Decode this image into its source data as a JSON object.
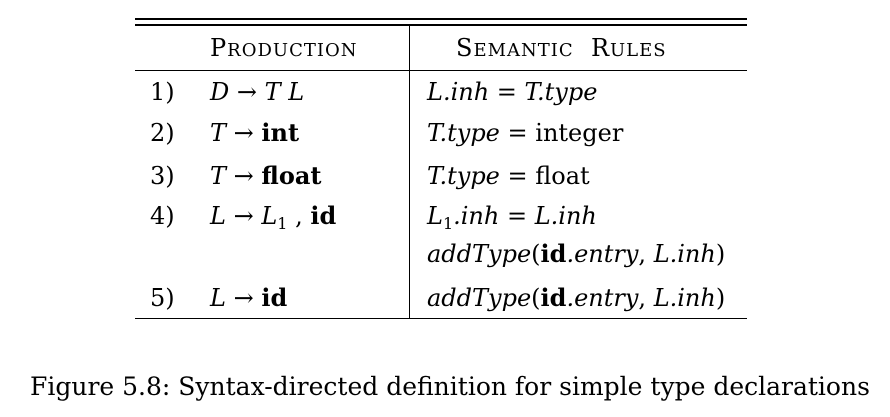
{
  "table": {
    "headers": {
      "production_initial": "P",
      "production_rest": "roduction",
      "semantic_initial_1": "S",
      "semantic_rest_1": "emantic",
      "semantic_initial_2": "R",
      "semantic_rest_2": "ules"
    },
    "rows": [
      {
        "num": "1)",
        "prod": {
          "lhs": "D",
          "arrow": "→",
          "rhs1": "T",
          "rhs2": "L"
        },
        "rule": {
          "a": "L.inh",
          "eq": " = ",
          "b": "T.type"
        }
      },
      {
        "num": "2)",
        "prod": {
          "lhs": "T",
          "arrow": "→",
          "rhs": "int"
        },
        "rule": {
          "a": "T.type",
          "eq": " = ",
          "b": "integer"
        }
      },
      {
        "num": "3)",
        "prod": {
          "lhs": "T",
          "arrow": "→",
          "rhs": "float"
        },
        "rule": {
          "a": "T.type",
          "eq": " = ",
          "b": "float"
        }
      },
      {
        "num": "4)",
        "prod": {
          "lhs": "L",
          "arrow": "→",
          "rhs_base": "L",
          "rhs_sub": "1",
          "comma": " , ",
          "rhs2": "id"
        },
        "rule": {
          "a_base": "L",
          "a_sub": "1",
          "a_rest": ".inh",
          "eq": " = ",
          "b": "L.inh"
        },
        "rule2": {
          "fn": "addType",
          "open": "(",
          "id": "id",
          "rest": ".entry",
          "comma": ", ",
          "arg2": "L.inh",
          "close": ")"
        }
      },
      {
        "num": "5)",
        "prod": {
          "lhs": "L",
          "arrow": "→",
          "rhs": "id"
        },
        "rule": {
          "fn": "addType",
          "open": "(",
          "id": "id",
          "rest": ".entry",
          "comma": ", ",
          "arg2": "L.inh",
          "close": ")"
        }
      }
    ]
  },
  "caption": "Figure 5.8: Syntax-directed definition for simple type declarations"
}
